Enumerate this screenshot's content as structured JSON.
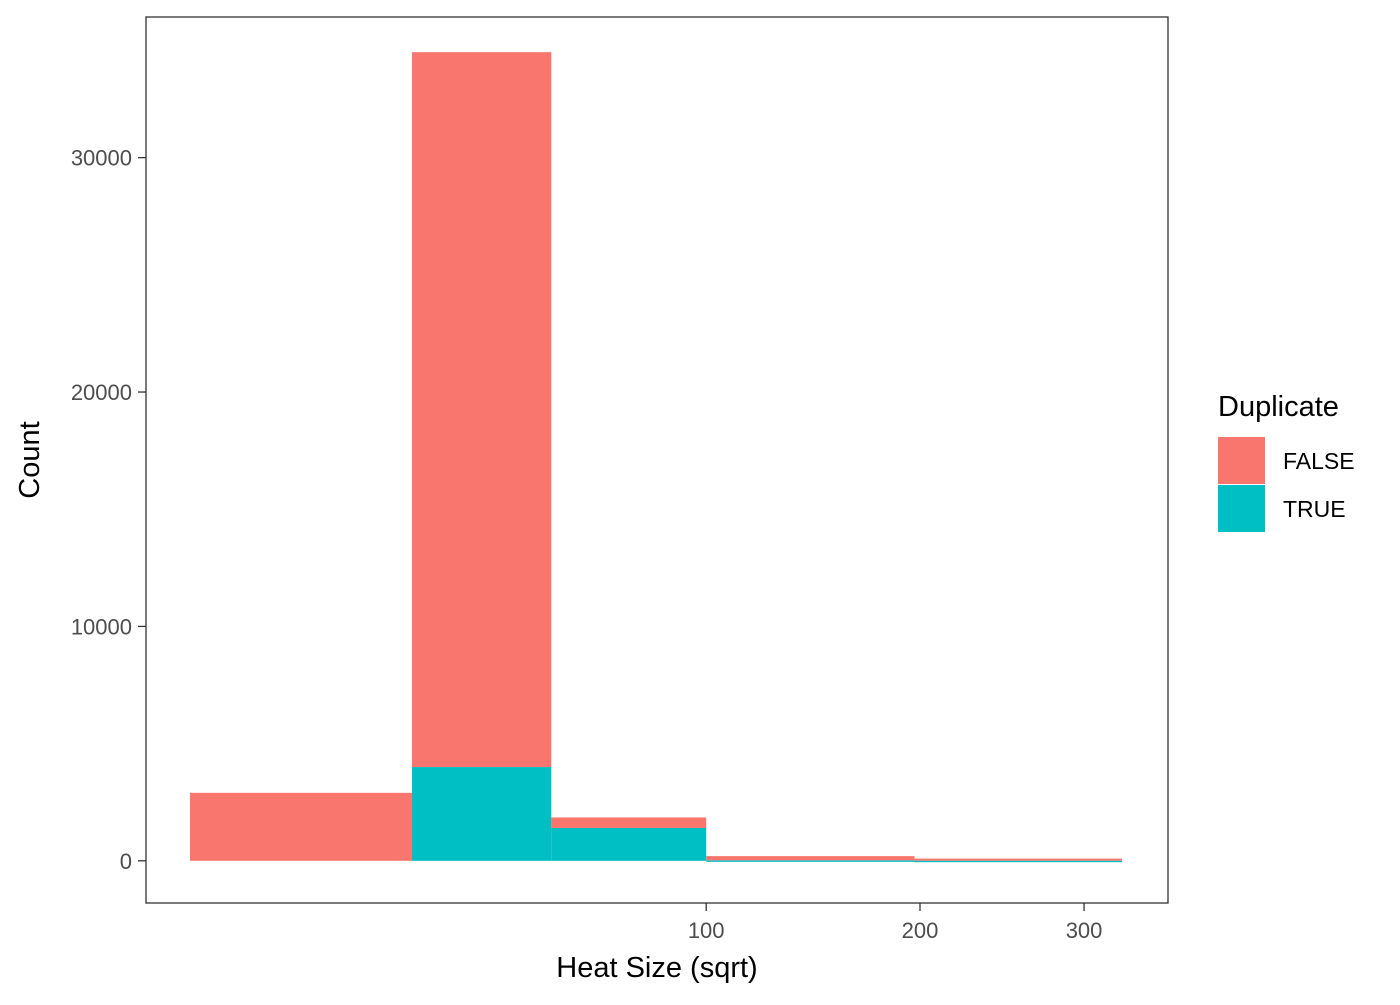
{
  "chart_data": {
    "type": "bar",
    "stacked": true,
    "x_scale": "sqrt",
    "xlabel": "Heat Size (sqrt)",
    "ylabel": "Count",
    "x_ticks": [
      100,
      200,
      300
    ],
    "y_ticks": [
      0,
      10000,
      20000,
      30000
    ],
    "ylim": [
      -1800,
      36000
    ],
    "grid": false,
    "bins": [
      {
        "x_min": 0,
        "x_max": 18.5
      },
      {
        "x_min": 18.5,
        "x_max": 49
      },
      {
        "x_min": 49,
        "x_max": 100
      },
      {
        "x_min": 100,
        "x_max": 197
      },
      {
        "x_min": 197,
        "x_max": 326
      }
    ],
    "series": [
      {
        "name": "FALSE",
        "color": "#F8766D",
        "values": [
          2900,
          30500,
          450,
          180,
          90
        ]
      },
      {
        "name": "TRUE",
        "color": "#00BFC4",
        "values": [
          0,
          4000,
          1400,
          20,
          5
        ]
      }
    ],
    "legend": {
      "title": "Duplicate",
      "position": "right"
    }
  }
}
